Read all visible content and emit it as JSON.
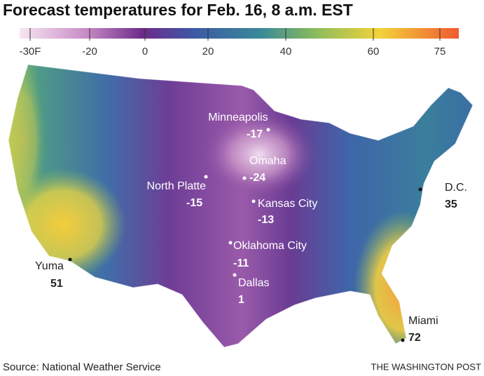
{
  "header": {
    "title": "Forecast temperatures for Feb. 16, 8 a.m. EST"
  },
  "legend": {
    "ticks": [
      "-30F",
      "-20",
      "0",
      "20",
      "40",
      "60",
      "75"
    ]
  },
  "cities": [
    {
      "name": "Minneapolis",
      "temp": -17
    },
    {
      "name": "Omaha",
      "temp": -24
    },
    {
      "name": "North Platte",
      "temp": -15
    },
    {
      "name": "Kansas City",
      "temp": -13
    },
    {
      "name": "Oklahoma City",
      "temp": -11
    },
    {
      "name": "Dallas",
      "temp": 1
    },
    {
      "name": "D.C.",
      "temp": 35
    },
    {
      "name": "Yuma",
      "temp": 51
    },
    {
      "name": "Miami",
      "temp": 72
    }
  ],
  "footer": {
    "source": "Source: National Weather Service",
    "credit": "THE WASHINGTON POST"
  }
}
